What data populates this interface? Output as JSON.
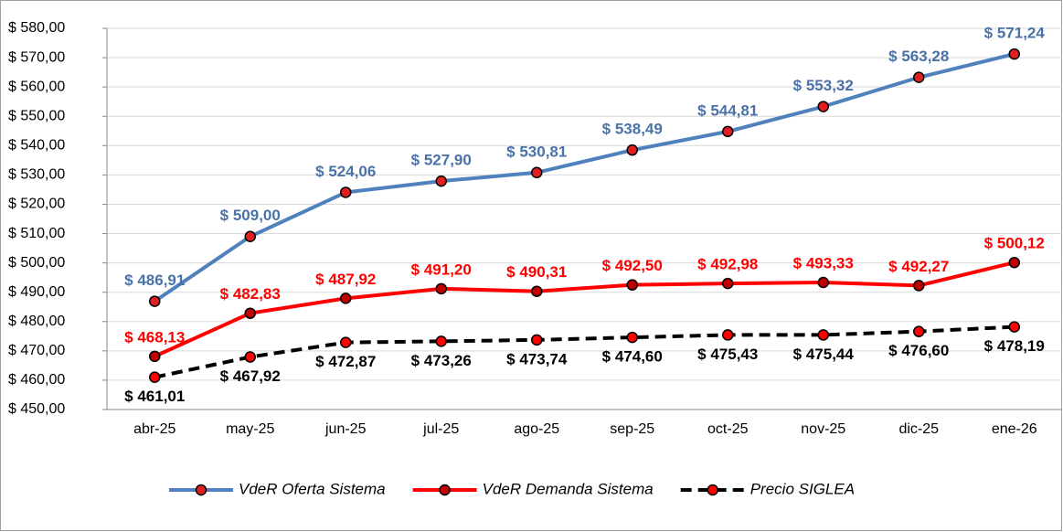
{
  "chart_data": {
    "type": "line",
    "categories": [
      "abr-25",
      "may-25",
      "jun-25",
      "jul-25",
      "ago-25",
      "sep-25",
      "oct-25",
      "nov-25",
      "dic-25",
      "ene-26"
    ],
    "series": [
      {
        "name": "VdeR Oferta Sistema",
        "color": "#4f81bd",
        "label_color": "#4a72a8",
        "marker_color": "#e02020",
        "dashed": false,
        "values": [
          486.91,
          509.0,
          524.06,
          527.9,
          530.81,
          538.49,
          544.81,
          553.32,
          563.28,
          571.24
        ],
        "value_labels": [
          "$ 486,91",
          "$ 509,00",
          "$ 524,06",
          "$ 527,90",
          "$ 530,81",
          "$ 538,49",
          "$ 544,81",
          "$ 553,32",
          "$ 563,28",
          "$ 571,24"
        ]
      },
      {
        "name": "VdeR Demanda Sistema",
        "color": "#ff0000",
        "label_color": "#ff0000",
        "marker_color": "#c00000",
        "dashed": false,
        "values": [
          468.13,
          482.83,
          487.92,
          491.2,
          490.31,
          492.5,
          492.98,
          493.33,
          492.27,
          500.12
        ],
        "value_labels": [
          "$ 468,13",
          "$ 482,83",
          "$ 487,92",
          "$ 491,20",
          "$ 490,31",
          "$ 492,50",
          "$ 492,98",
          "$ 493,33",
          "$ 492,27",
          "$ 500,12"
        ]
      },
      {
        "name": "Precio SIGLEA",
        "color": "#000000",
        "label_color": "#000000",
        "marker_color": "#ff0000",
        "dashed": true,
        "values": [
          461.01,
          467.92,
          472.87,
          473.26,
          473.74,
          474.6,
          475.43,
          475.44,
          476.6,
          478.19
        ],
        "value_labels": [
          "$ 461,01",
          "$ 467,92",
          "$ 472,87",
          "$ 473,26",
          "$ 473,74",
          "$ 474,60",
          "$ 475,43",
          "$ 475,44",
          "$ 476,60",
          "$ 478,19"
        ]
      }
    ],
    "ylim": [
      450,
      580
    ],
    "yticks": [
      {
        "value": 450,
        "label": "$ 450,00"
      },
      {
        "value": 460,
        "label": "$ 460,00"
      },
      {
        "value": 470,
        "label": "$ 470,00"
      },
      {
        "value": 480,
        "label": "$ 480,00"
      },
      {
        "value": 490,
        "label": "$ 490,00"
      },
      {
        "value": 500,
        "label": "$ 500,00"
      },
      {
        "value": 510,
        "label": "$ 510,00"
      },
      {
        "value": 520,
        "label": "$ 520,00"
      },
      {
        "value": 530,
        "label": "$ 530,00"
      },
      {
        "value": 540,
        "label": "$ 540,00"
      },
      {
        "value": 550,
        "label": "$ 550,00"
      },
      {
        "value": 560,
        "label": "$ 560,00"
      },
      {
        "value": 570,
        "label": "$ 570,00"
      },
      {
        "value": 580,
        "label": "$ 580,00"
      }
    ],
    "grid": true,
    "legend": "bottom"
  }
}
